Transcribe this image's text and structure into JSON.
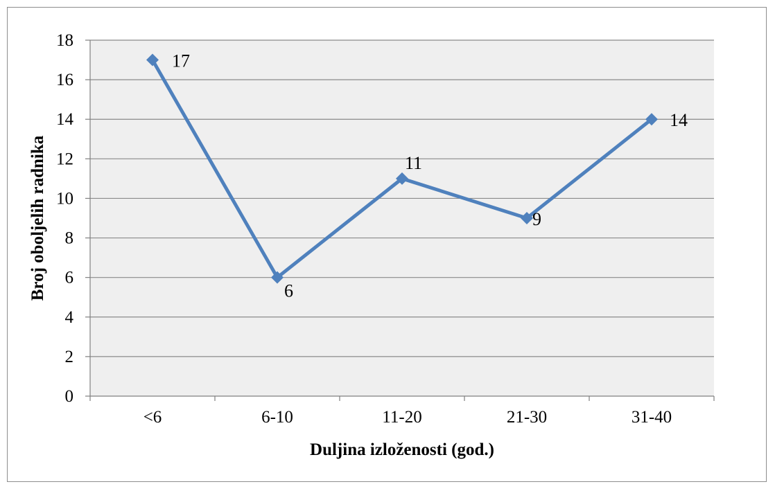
{
  "chart_data": {
    "type": "line",
    "categories": [
      "<6",
      "6-10",
      "11-20",
      "21-30",
      "31-40"
    ],
    "series": [
      {
        "values": [
          17,
          6,
          11,
          9,
          14
        ],
        "color": "#4f81bd",
        "marker": "diamond"
      }
    ],
    "data_labels": [
      "17",
      "6",
      "11",
      "9",
      "14"
    ],
    "xlabel": "Duljina izloženosti (god.)",
    "ylabel": "Broj oboljelih radnika",
    "ylim": [
      0,
      18
    ],
    "yticks": [
      0,
      2,
      4,
      6,
      8,
      10,
      12,
      14,
      16,
      18
    ],
    "grid": "horizontal",
    "plot_background": "#efefef",
    "legend": "none"
  }
}
